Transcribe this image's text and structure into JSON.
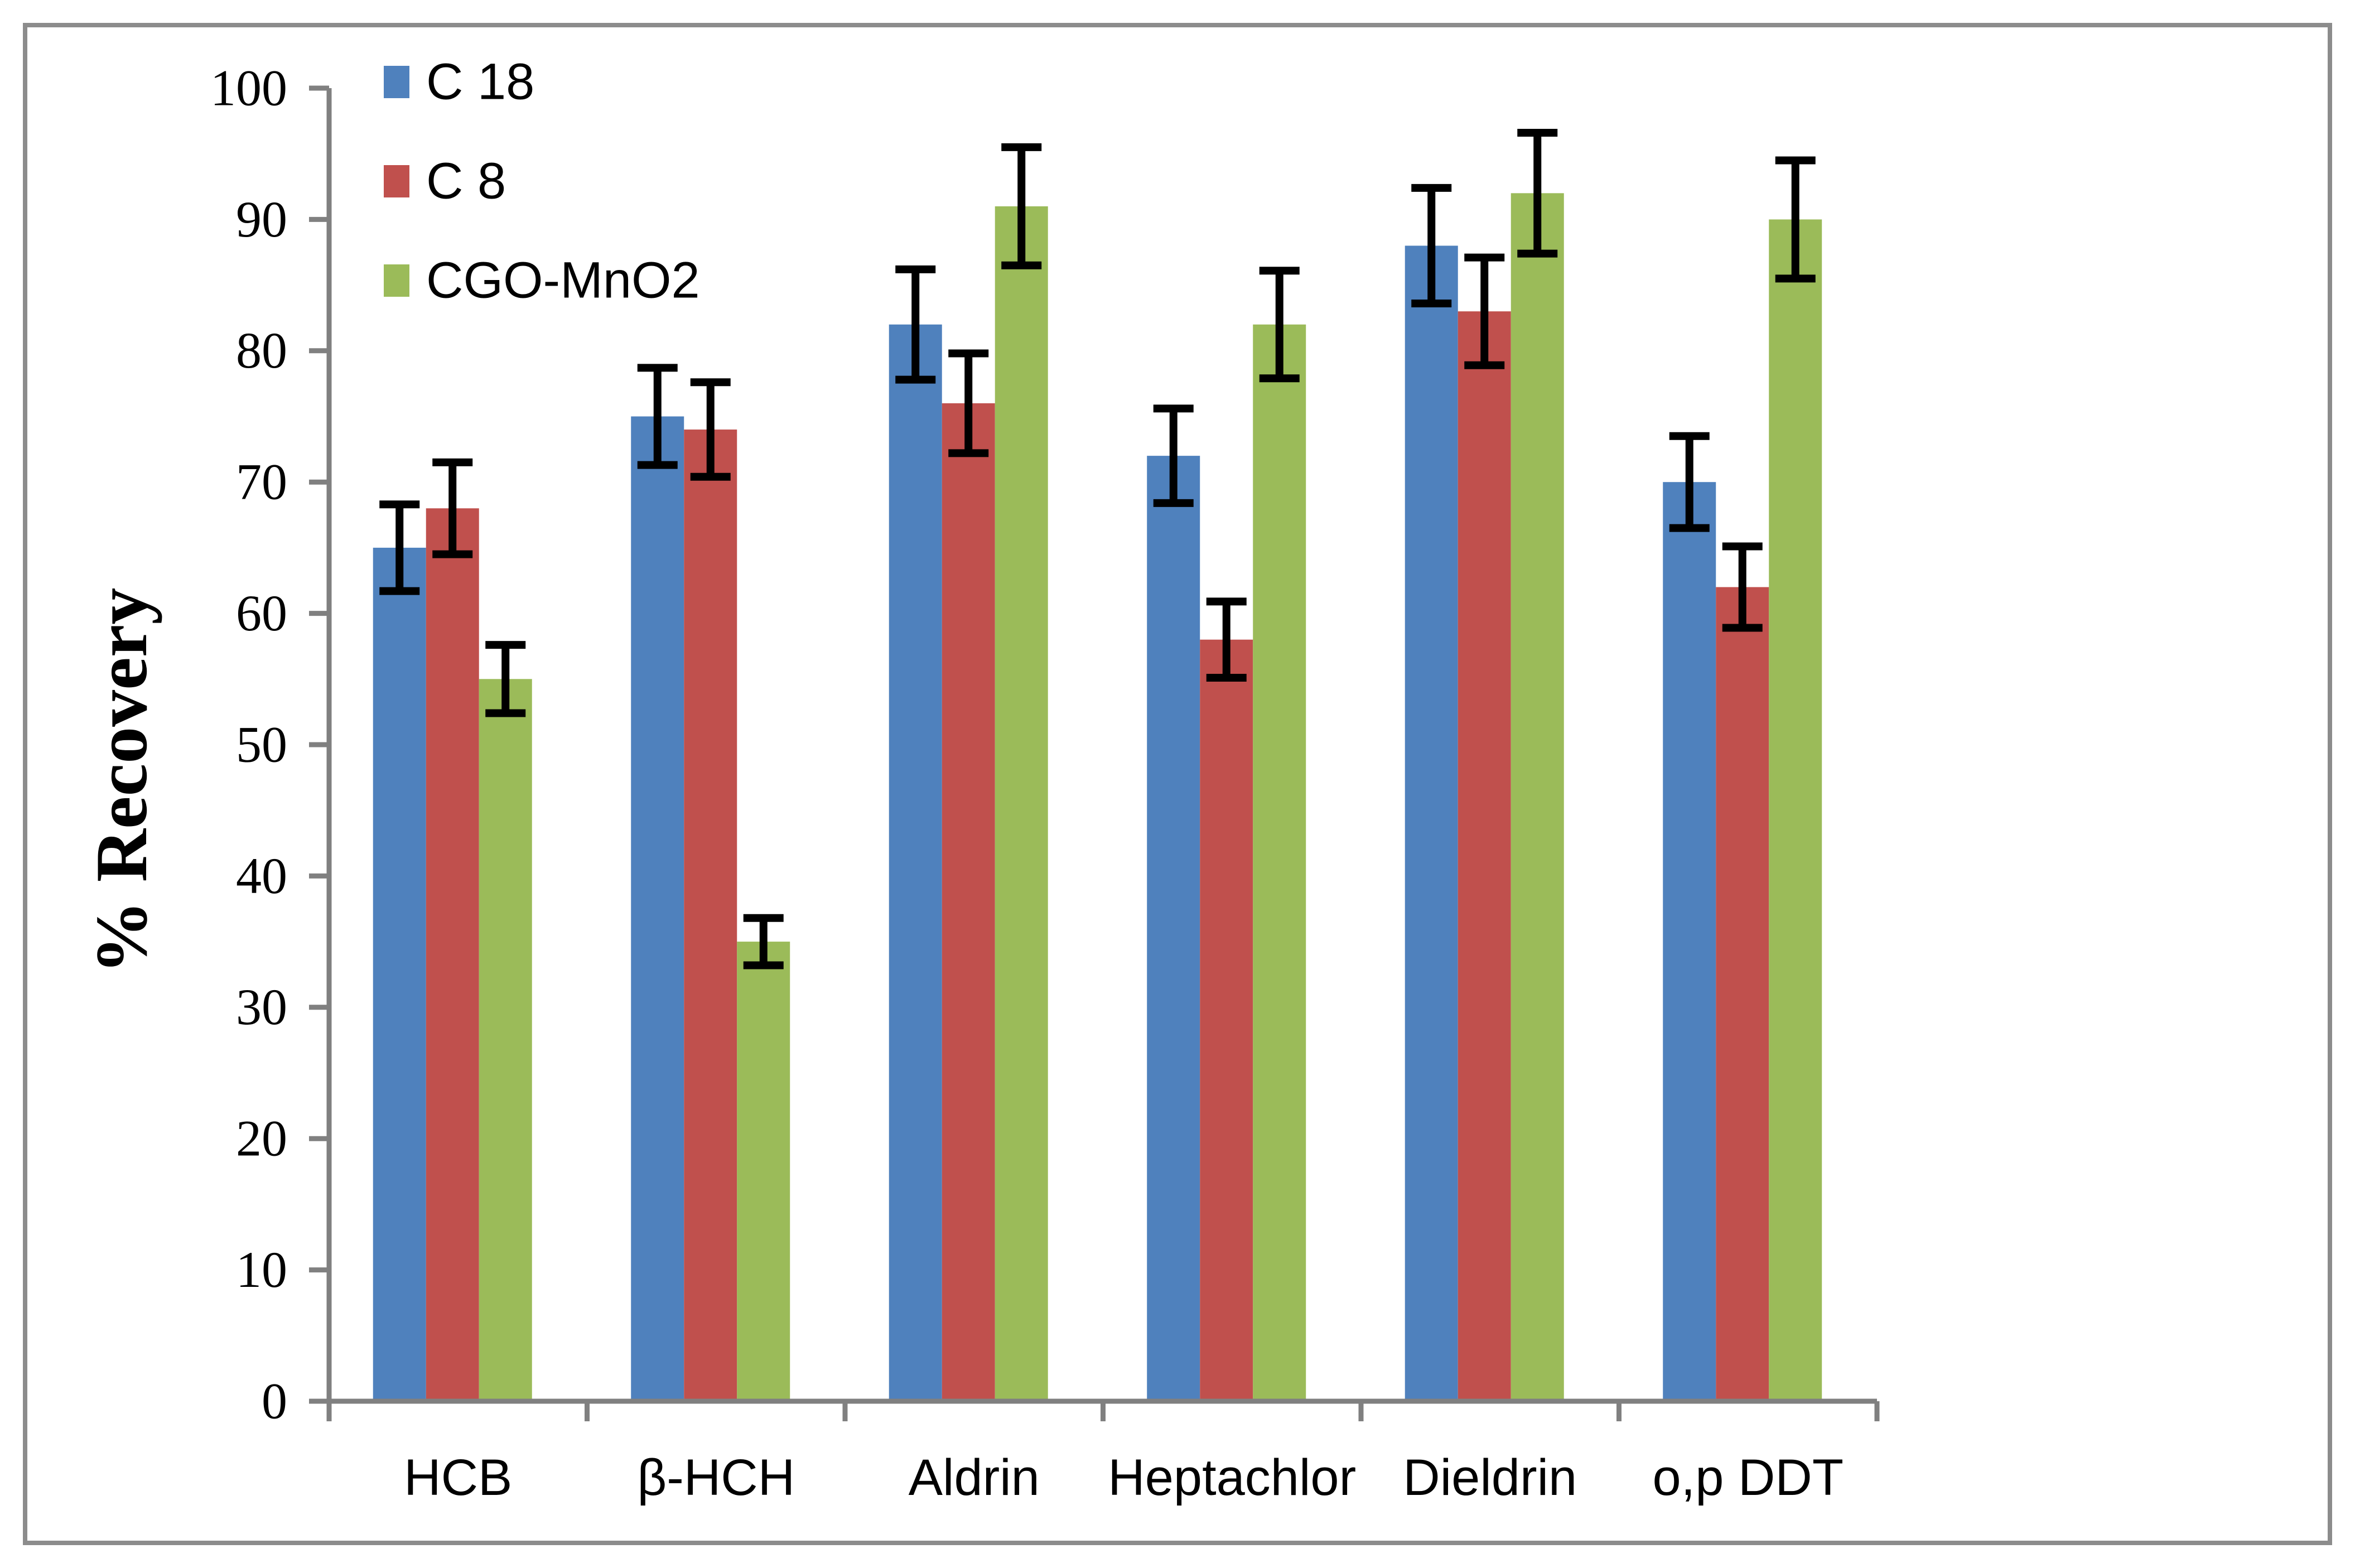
{
  "figure": {
    "background": "#ffffff",
    "border_color": "#8c8c8c"
  },
  "chart_data": {
    "type": "bar",
    "title": "",
    "xlabel": "",
    "ylabel": "% Recovery",
    "ylim": [
      0,
      100
    ],
    "yticks": [
      0,
      10,
      20,
      30,
      40,
      50,
      60,
      70,
      80,
      90,
      100
    ],
    "grid": false,
    "error_bars": true,
    "legend_position": "top-left",
    "axis_color": "#808080",
    "error_bar_color": "#000000",
    "text_color": "#000000",
    "categories": [
      "HCB",
      "β-HCH",
      "Aldrin",
      "Heptachlor",
      "Dieldrin",
      "o,p DDT"
    ],
    "series": [
      {
        "name": "C 18",
        "color": "#4F81BD",
        "values": [
          65,
          75,
          82,
          72,
          88,
          70
        ],
        "errors": [
          3.3,
          3.7,
          4.2,
          3.6,
          4.4,
          3.5
        ]
      },
      {
        "name": "C 8",
        "color": "#C0504D",
        "values": [
          68,
          74,
          76,
          58,
          83,
          62
        ],
        "errors": [
          3.5,
          3.6,
          3.8,
          2.9,
          4.1,
          3.1
        ]
      },
      {
        "name": "CGO-MnO2",
        "color": "#9BBB59",
        "values": [
          55,
          35,
          91,
          82,
          92,
          90
        ],
        "errors": [
          2.6,
          1.8,
          4.5,
          4.1,
          4.6,
          4.5
        ]
      }
    ]
  }
}
